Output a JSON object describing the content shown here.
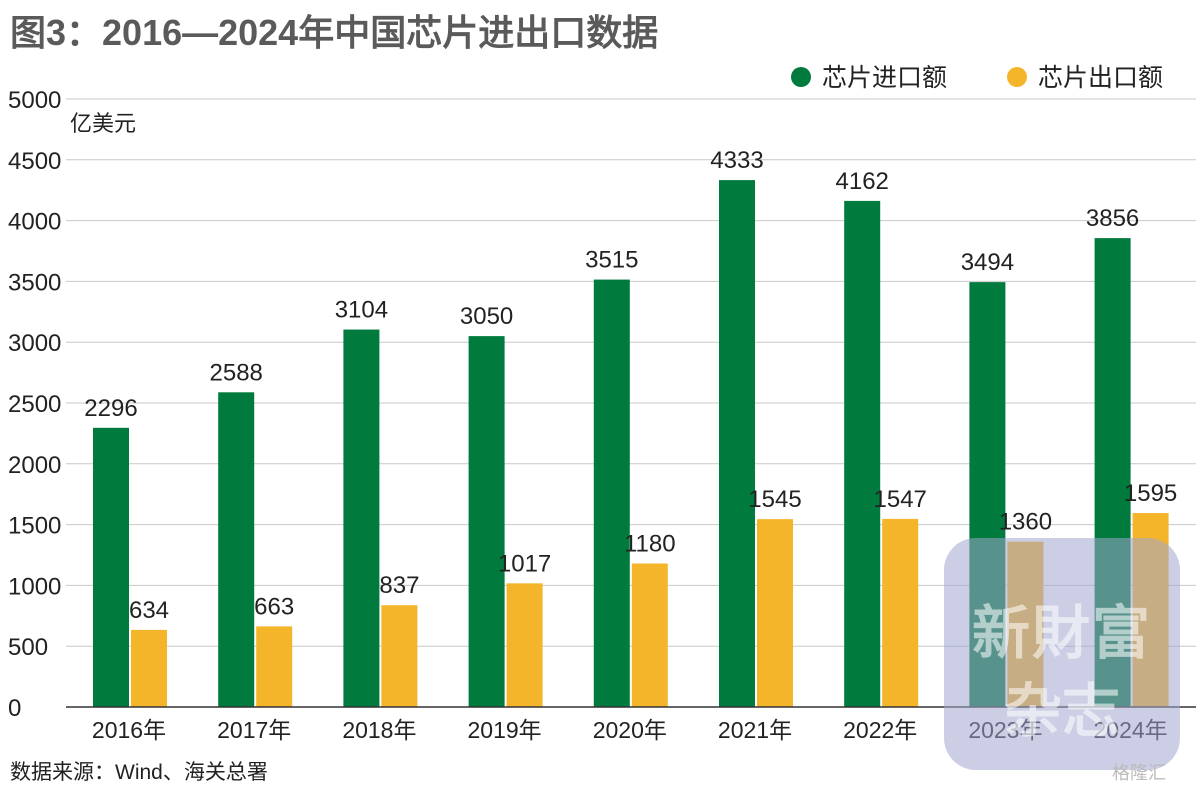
{
  "title": "图3：2016—2024年中国芯片进出口数据",
  "source": "数据来源：Wind、海关总署",
  "watermark": {
    "line1": "新財富",
    "line2": "杂志"
  },
  "corner_logo": "格隆汇",
  "colors": {
    "import": "#007a3d",
    "export": "#f5b52a",
    "grid": "#c8c8c8",
    "axis": "#333333"
  },
  "chart_data": {
    "type": "bar",
    "unit_label": "亿美元",
    "categories": [
      "2016年",
      "2017年",
      "2018年",
      "2019年",
      "2020年",
      "2021年",
      "2022年",
      "2023年",
      "2024年"
    ],
    "series": [
      {
        "name": "芯片进口额",
        "values": [
          2296,
          2588,
          3104,
          3050,
          3515,
          4333,
          4162,
          3494,
          3856
        ]
      },
      {
        "name": "芯片出口额",
        "values": [
          634,
          663,
          837,
          1017,
          1180,
          1545,
          1547,
          1360,
          1595
        ]
      }
    ],
    "ylim": [
      0,
      5000
    ],
    "yticks": [
      0,
      500,
      1000,
      1500,
      2000,
      2500,
      3000,
      3500,
      4000,
      4500,
      5000
    ],
    "grid": true,
    "legend_position": "top-right",
    "data_labels": true
  }
}
